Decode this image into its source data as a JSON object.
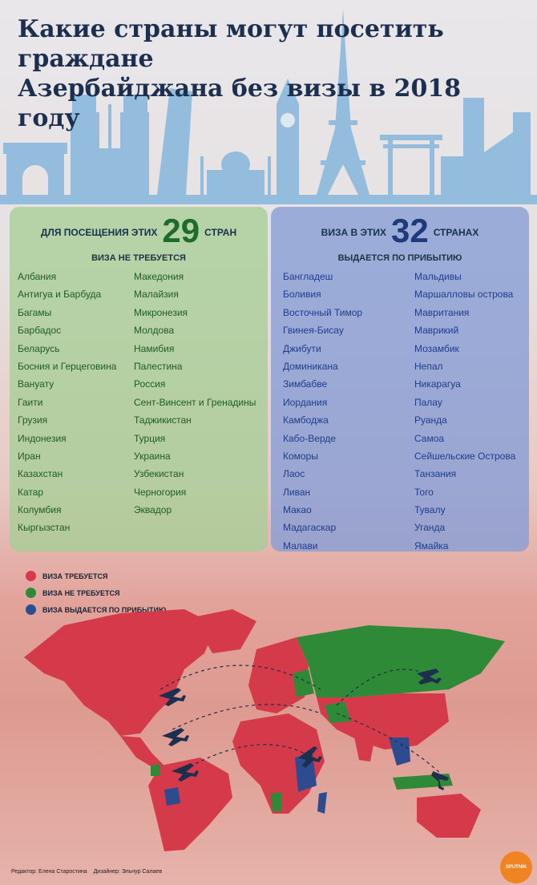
{
  "title": {
    "line1": "Какие страны могут посетить граждане",
    "line2": "Азербайджана без визы в 2018 году"
  },
  "colors": {
    "visa_required": "#d53a4b",
    "visa_not_required": "#2f8a38",
    "visa_on_arrival": "#2c4c8f",
    "skyline": "#8ab8dd"
  },
  "visa_free": {
    "header_pre": "ДЛЯ ПОСЕЩЕНИЯ ЭТИХ",
    "count": "29",
    "header_post": "СТРАН",
    "subtitle": "ВИЗА НЕ ТРЕБУЕТСЯ",
    "col1": [
      "Албания",
      "Антигуа и Барбуда",
      "Багамы",
      "Барбадос",
      "Беларусь",
      "Босния и Герцеговина",
      "Вануату",
      "Гаити",
      "Грузия",
      "Индонезия",
      "Иран",
      "Казахстан",
      "Катар",
      "Колумбия",
      "Кыргызстан"
    ],
    "col2": [
      "Македония",
      "Малайзия",
      "Микронезия",
      "Молдова",
      "Намибия",
      "Палестина",
      "Россия",
      "Сент-Винсент и Гренадины",
      "Таджикистан",
      "Турция",
      "Украина",
      "Узбекистан",
      "Черногория",
      "Эквадор"
    ]
  },
  "visa_on_arrival": {
    "header_pre": "ВИЗА В ЭТИХ",
    "count": "32",
    "header_post": "СТРАНАХ",
    "subtitle": "ВЫДАЕТСЯ ПО ПРИБЫТИЮ",
    "col1": [
      "Бангладеш",
      "Боливия",
      "Восточный Тимор",
      "Гвинея-Бисау",
      "Джибути",
      "Доминикана",
      "Зимбабве",
      "Иордания",
      "Камбоджа",
      "Кабо-Верде",
      "Коморы",
      "Лаос",
      "Ливан",
      "Макао",
      "Мадагаскар",
      "Малави"
    ],
    "col2": [
      "Мальдивы",
      "Маршалловы острова",
      "Мавритания",
      "Маврикий",
      "Мозамбик",
      "Непал",
      "Никарагуа",
      "Палау",
      "Руанда",
      "Самоа",
      "Сейшельские Острова",
      "Танзания",
      "Того",
      "Тувалу",
      "Уганда",
      "Ямайка"
    ]
  },
  "legend": [
    {
      "label": "ВИЗА ТРЕБУЕТСЯ",
      "color": "#d53a4b"
    },
    {
      "label": "ВИЗА НЕ ТРЕБУЕТСЯ",
      "color": "#2f8a38"
    },
    {
      "label": "ВИЗА ВЫДАЕТСЯ ПО ПРИБЫТИЮ",
      "color": "#2c4c8f"
    }
  ],
  "credits": {
    "editor": "Редактор: Елена Старостина",
    "designer": "Дизайнер: Эльнур Салаев"
  },
  "logo": "SPUTNIK"
}
